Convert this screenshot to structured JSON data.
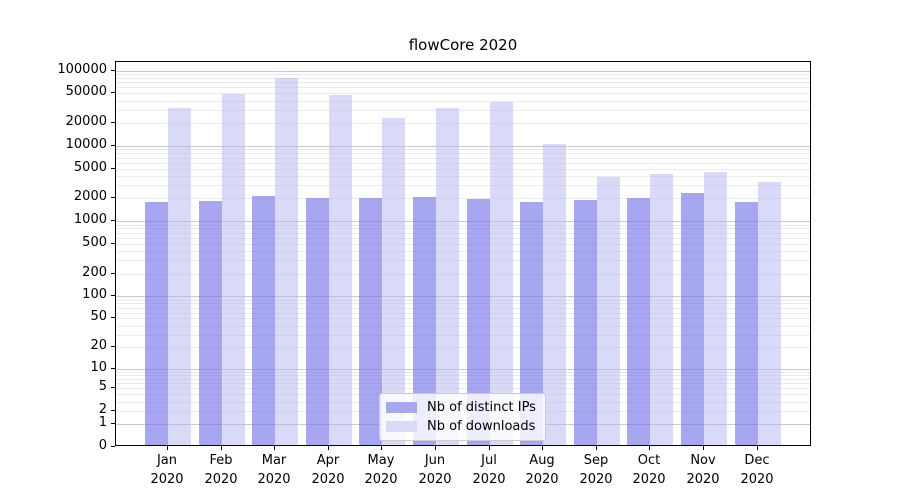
{
  "figure": {
    "background": "#ffffff"
  },
  "chart_data": {
    "type": "bar",
    "title": "flowCore 2020",
    "categories": [
      "Jan 2020",
      "Feb 2020",
      "Mar 2020",
      "Apr 2020",
      "May 2020",
      "Jun 2020",
      "Jul 2020",
      "Aug 2020",
      "Sep 2020",
      "Oct 2020",
      "Nov 2020",
      "Dec 2020"
    ],
    "series": [
      {
        "name": "Nb of distinct IPs",
        "color": "#a6a6f1",
        "fill": "rgba(118,118,233,0.65)",
        "values": [
          1700,
          1750,
          2050,
          1900,
          1900,
          1950,
          1850,
          1700,
          1800,
          1900,
          2200,
          1700
        ]
      },
      {
        "name": "Nb of downloads",
        "color": "#d9d9f8",
        "fill": "rgba(179,179,241,0.5)",
        "values": [
          30000,
          46000,
          76000,
          44000,
          22000,
          30000,
          36000,
          10000,
          3600,
          4000,
          4200,
          3100
        ]
      }
    ],
    "yticks": [
      0,
      1,
      2,
      5,
      10,
      20,
      50,
      100,
      200,
      500,
      1000,
      2000,
      5000,
      10000,
      20000,
      50000,
      100000
    ],
    "ylim": [
      0,
      130000
    ],
    "scale": "log1p",
    "grid": {
      "minor_color": "#ebebeb",
      "major_color": "#c9c9c9"
    },
    "legend_position": "inside lower center"
  }
}
